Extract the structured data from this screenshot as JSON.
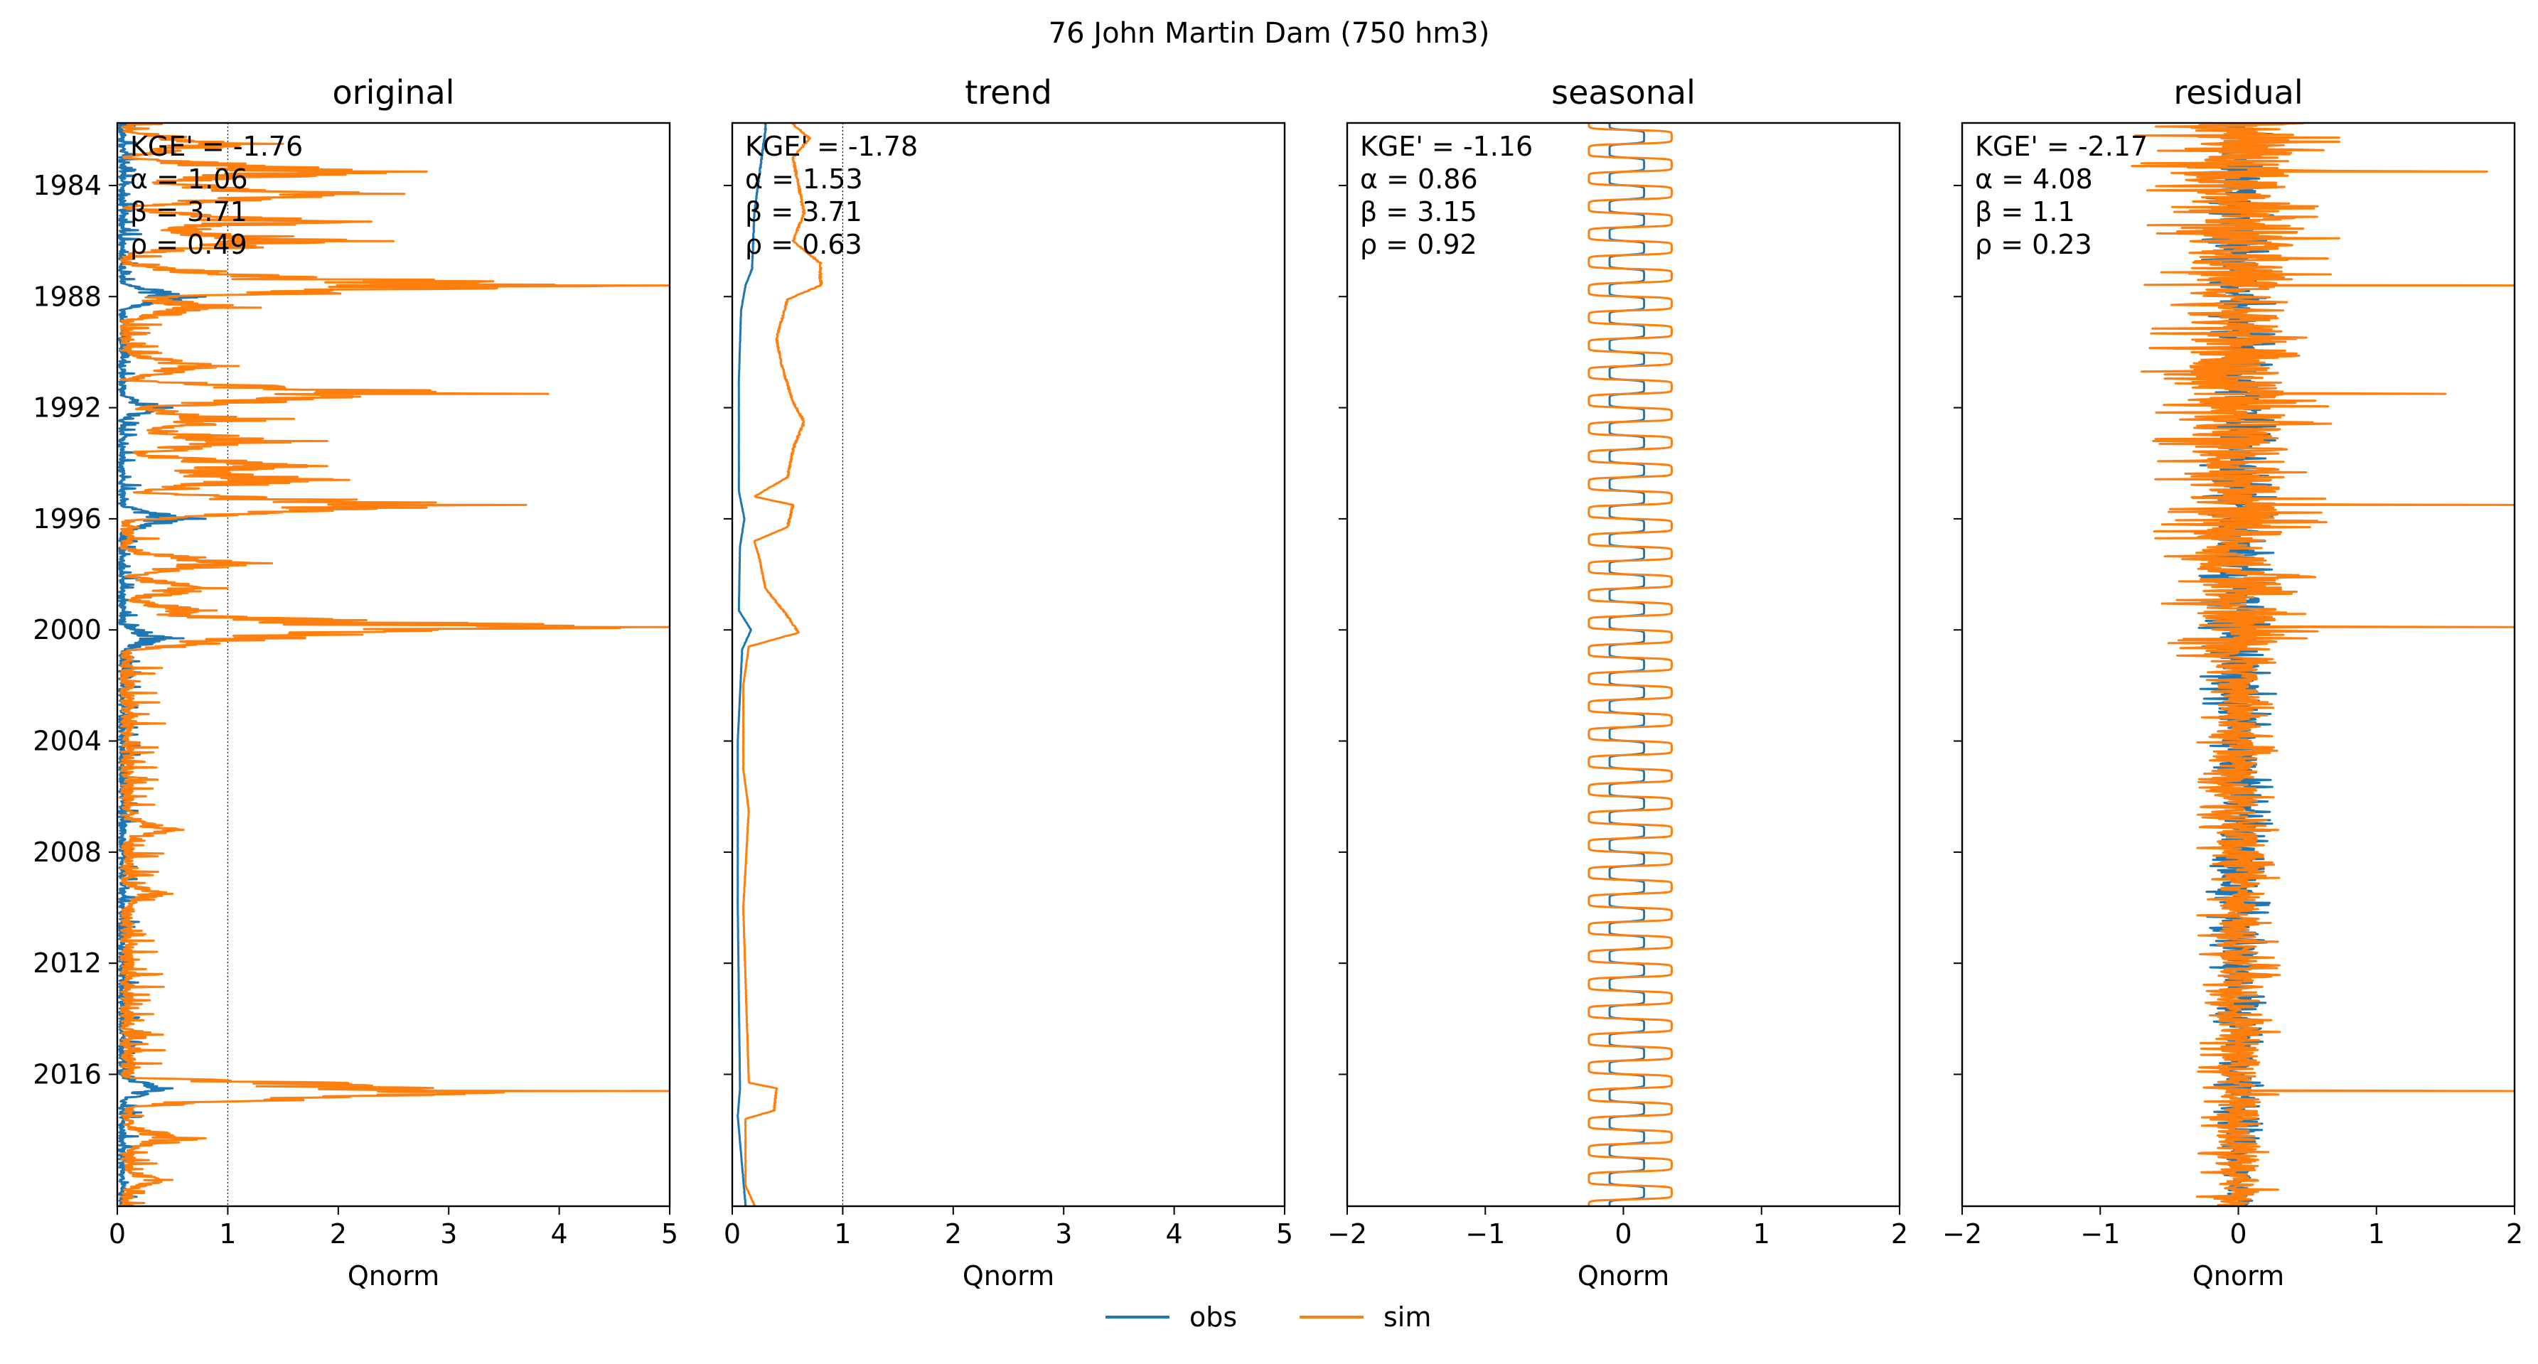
{
  "figure": {
    "suptitle": "76  John Martin Dam (750 hm3)"
  },
  "legend": {
    "placement": "bottom-center",
    "entries": [
      {
        "name": "obs",
        "color": "#1f77b4"
      },
      {
        "name": "sim",
        "color": "#ff7f0e"
      }
    ]
  },
  "chart_data": [
    {
      "type": "line",
      "title": "original",
      "xlabel": "Qnorm",
      "ylabel": "",
      "xlim": [
        0,
        5
      ],
      "xticks": [
        0,
        1,
        2,
        3,
        4,
        5
      ],
      "xtick_labels": [
        "0",
        "1",
        "2",
        "3",
        "4",
        "5"
      ],
      "ylim": [
        "1981-10-01",
        "2020-09-30"
      ],
      "yticks": [
        "1984",
        "1988",
        "1992",
        "1996",
        "2000",
        "2004",
        "2008",
        "2012",
        "2016"
      ],
      "yticks_labeled": true,
      "reference_line_x": 1,
      "stats": [
        "KGE' = -1.76",
        "α = 1.06",
        "β = 3.71",
        "ρ = 0.49"
      ],
      "series": [
        {
          "name": "obs",
          "color": "#1f77b4",
          "kind": "flow",
          "base": 0.05,
          "peaks": [
            [
              "1988.0",
              0.8
            ],
            [
              "1992.0",
              0.5
            ],
            [
              "1996.0",
              0.8
            ],
            [
              "2000.3",
              0.6
            ],
            [
              "2016.5",
              0.5
            ]
          ]
        },
        {
          "name": "sim",
          "color": "#ff7f0e",
          "kind": "flow",
          "base": 0.1,
          "peaks": [
            [
              "1982.5",
              1.5
            ],
            [
              "1983.5",
              2.8
            ],
            [
              "1984.3",
              2.6
            ],
            [
              "1985.3",
              2.3
            ],
            [
              "1986.0",
              2.5
            ],
            [
              "1987.3",
              1.8
            ],
            [
              "1987.6",
              5.0
            ],
            [
              "1988.4",
              1.3
            ],
            [
              "1990.5",
              1.1
            ],
            [
              "1991.5",
              3.9
            ],
            [
              "1991.6",
              2.2
            ],
            [
              "1992.4",
              1.6
            ],
            [
              "1993.2",
              1.9
            ],
            [
              "1994.1",
              1.9
            ],
            [
              "1994.6",
              2.1
            ],
            [
              "1995.5",
              3.7
            ],
            [
              "1995.6",
              2.8
            ],
            [
              "1997.6",
              1.4
            ],
            [
              "1998.5",
              1.0
            ],
            [
              "1999.3",
              0.9
            ],
            [
              "1999.9",
              5.0
            ],
            [
              "2000.0",
              2.9
            ],
            [
              "2000.3",
              1.7
            ],
            [
              "2007.2",
              0.6
            ],
            [
              "2009.5",
              0.5
            ],
            [
              "2016.6",
              5.0
            ],
            [
              "2016.7",
              2.9
            ],
            [
              "2018.3",
              0.8
            ],
            [
              "2019.8",
              0.5
            ]
          ]
        }
      ]
    },
    {
      "type": "line",
      "title": "trend",
      "xlabel": "Qnorm",
      "ylabel": "",
      "xlim": [
        0,
        5
      ],
      "xticks": [
        0,
        1,
        2,
        3,
        4,
        5
      ],
      "xtick_labels": [
        "0",
        "1",
        "2",
        "3",
        "4",
        "5"
      ],
      "ylim": [
        "1981-10-01",
        "2020-09-30"
      ],
      "yticks": [
        "1984",
        "1988",
        "1992",
        "1996",
        "2000",
        "2004",
        "2008",
        "2012",
        "2016"
      ],
      "yticks_labeled": false,
      "reference_line_x": 1,
      "stats": [
        "KGE' = -1.78",
        "α = 1.53",
        "β = 3.71",
        "ρ = 0.63"
      ],
      "series": [
        {
          "name": "obs",
          "color": "#1f77b4",
          "kind": "trend",
          "points": [
            [
              "1982.0",
              0.3
            ],
            [
              "1985.0",
              0.2
            ],
            [
              "1987.0",
              0.18
            ],
            [
              "1987.6",
              0.12
            ],
            [
              "1988.5",
              0.08
            ],
            [
              "1991.0",
              0.06
            ],
            [
              "1995.0",
              0.06
            ],
            [
              "1996.0",
              0.11
            ],
            [
              "1997.0",
              0.07
            ],
            [
              "1999.3",
              0.06
            ],
            [
              "2000.0",
              0.17
            ],
            [
              "2000.7",
              0.09
            ],
            [
              "2004.0",
              0.05
            ],
            [
              "2010.0",
              0.05
            ],
            [
              "2016.5",
              0.07
            ],
            [
              "2017.5",
              0.05
            ],
            [
              "2020.7",
              0.12
            ]
          ]
        },
        {
          "name": "sim",
          "color": "#ff7f0e",
          "kind": "trend",
          "points": [
            [
              "1981.8",
              0.55
            ],
            [
              "1982.3",
              0.7
            ],
            [
              "1983.0",
              0.55
            ],
            [
              "1984.0",
              0.6
            ],
            [
              "1985.0",
              0.65
            ],
            [
              "1986.0",
              0.55
            ],
            [
              "1986.8",
              0.8
            ],
            [
              "1987.6",
              0.8
            ],
            [
              "1988.1",
              0.5
            ],
            [
              "1989.5",
              0.4
            ],
            [
              "1990.5",
              0.45
            ],
            [
              "1991.8",
              0.55
            ],
            [
              "1992.5",
              0.65
            ],
            [
              "1993.5",
              0.55
            ],
            [
              "1994.5",
              0.5
            ],
            [
              "1995.2",
              0.2
            ],
            [
              "1995.5",
              0.55
            ],
            [
              "1996.3",
              0.5
            ],
            [
              "1996.8",
              0.2
            ],
            [
              "1997.5",
              0.25
            ],
            [
              "1998.5",
              0.3
            ],
            [
              "1999.5",
              0.5
            ],
            [
              "2000.1",
              0.6
            ],
            [
              "2000.6",
              0.15
            ],
            [
              "2002.0",
              0.1
            ],
            [
              "2005.0",
              0.1
            ],
            [
              "2006.5",
              0.15
            ],
            [
              "2010.0",
              0.1
            ],
            [
              "2016.3",
              0.15
            ],
            [
              "2016.5",
              0.4
            ],
            [
              "2017.3",
              0.38
            ],
            [
              "2017.6",
              0.12
            ],
            [
              "2020.0",
              0.12
            ],
            [
              "2020.7",
              0.2
            ]
          ]
        }
      ]
    },
    {
      "type": "line",
      "title": "seasonal",
      "xlabel": "Qnorm",
      "ylabel": "",
      "xlim": [
        -2,
        2
      ],
      "xticks": [
        -2,
        -1,
        0,
        1,
        2
      ],
      "xtick_labels": [
        "−2",
        "−1",
        "0",
        "1",
        "2"
      ],
      "ylim": [
        "1981-10-01",
        "2020-09-30"
      ],
      "yticks": [
        "1984",
        "1988",
        "1992",
        "1996",
        "2000",
        "2004",
        "2008",
        "2012",
        "2016"
      ],
      "yticks_labeled": false,
      "reference_line_x": null,
      "stats": [
        "KGE' = -1.16",
        "α = 0.86",
        "β = 3.15",
        "ρ = 0.92"
      ],
      "series": [
        {
          "name": "obs",
          "color": "#1f77b4",
          "kind": "seasonal",
          "low": -0.1,
          "high": 0.15
        },
        {
          "name": "sim",
          "color": "#ff7f0e",
          "kind": "seasonal",
          "low": -0.25,
          "high": 0.35
        }
      ]
    },
    {
      "type": "line",
      "title": "residual",
      "xlabel": "Qnorm",
      "ylabel": "",
      "xlim": [
        -2,
        2
      ],
      "xticks": [
        -2,
        -1,
        0,
        1,
        2
      ],
      "xtick_labels": [
        "−2",
        "−1",
        "0",
        "1",
        "2"
      ],
      "ylim": [
        "1981-10-01",
        "2020-09-30"
      ],
      "yticks": [
        "1984",
        "1988",
        "1992",
        "1996",
        "2000",
        "2004",
        "2008",
        "2012",
        "2016"
      ],
      "yticks_labeled": false,
      "reference_line_x": null,
      "stats": [
        "KGE' = -2.17",
        "α = 4.08",
        "β = 1.1",
        "ρ = 0.23"
      ],
      "series": [
        {
          "name": "obs",
          "color": "#1f77b4",
          "kind": "noise",
          "amp": [
            [
              1981.8,
              0.25
            ],
            [
              2000.5,
              0.3
            ],
            [
              2020.8,
              0.15
            ]
          ]
        },
        {
          "name": "sim",
          "color": "#ff7f0e",
          "kind": "noise",
          "amp": [
            [
              1981.8,
              0.8
            ],
            [
              1990.0,
              0.7
            ],
            [
              2000.5,
              0.6
            ],
            [
              2001.5,
              0.3
            ],
            [
              2020.8,
              0.3
            ]
          ],
          "spikes": [
            [
              "1987.6",
              2.0
            ],
            [
              "1991.5",
              1.5
            ],
            [
              "1995.5",
              2.0
            ],
            [
              "1999.9",
              2.0
            ],
            [
              "2016.6",
              2.0
            ],
            [
              "1983.5",
              1.8
            ],
            [
              "1990.7",
              -0.7
            ],
            [
              "1996.7",
              -0.6
            ]
          ]
        }
      ]
    }
  ]
}
